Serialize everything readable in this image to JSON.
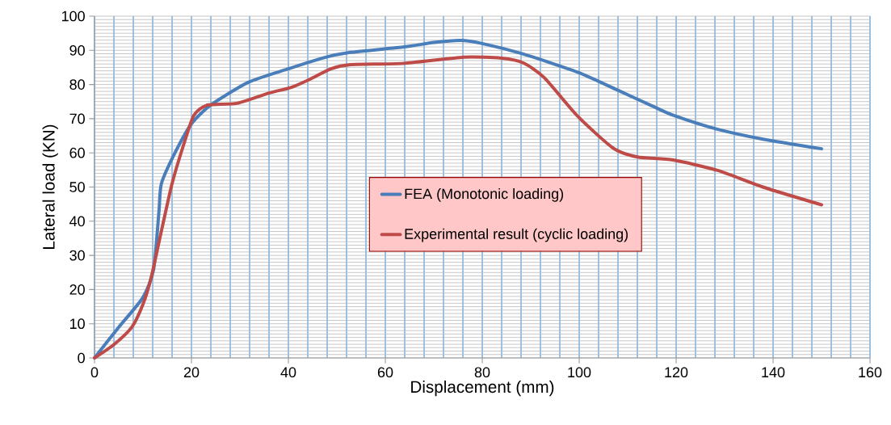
{
  "chart_data": {
    "type": "line",
    "xlabel": "Displacement (mm)",
    "ylabel": "Lateral load (KN)",
    "xlim": [
      0,
      160
    ],
    "ylim": [
      0,
      100
    ],
    "xticks": [
      0,
      20,
      40,
      60,
      80,
      100,
      120,
      140,
      160
    ],
    "yticks": [
      0,
      10,
      20,
      30,
      40,
      50,
      60,
      70,
      80,
      90,
      100
    ],
    "grid": true,
    "legend": "center",
    "line_style": "solid",
    "marker": "none",
    "series": [
      {
        "name": "FEA (Monotonic loading)",
        "color": "#4a7ebb",
        "x": [
          0,
          5,
          10,
          12.2,
          13.3,
          13.8,
          16.6,
          20,
          24,
          31.8,
          40,
          47.2,
          52.8,
          63.9,
          70,
          75.5,
          80,
          88.5,
          99.7,
          107.7,
          115.7,
          119.4,
          128,
          137.9,
          150
        ],
        "values": [
          0,
          9,
          17.7,
          26,
          43,
          51,
          60,
          68.5,
          74,
          80.7,
          84.6,
          87.8,
          89.4,
          91,
          92.3,
          92.9,
          92,
          88.9,
          83.6,
          78.5,
          73.3,
          71,
          67.1,
          64,
          61.2
        ]
      },
      {
        "name": "Experimental result (cyclic loading)",
        "color": "#be4b48",
        "x": [
          0,
          4,
          7.7,
          10,
          11.7,
          13.9,
          16,
          18.3,
          20.5,
          23.3,
          29.4,
          36,
          40.5,
          44.4,
          48.8,
          52.8,
          63.9,
          76.2,
          84,
          88.5,
          92.8,
          99.7,
          107,
          112,
          119.4,
          128.7,
          137.9,
          150
        ],
        "values": [
          0,
          3.9,
          9,
          15.7,
          23.6,
          37.8,
          51,
          62,
          71,
          74,
          74.5,
          77.5,
          79.1,
          81.5,
          84.6,
          85.8,
          86.2,
          88,
          87.7,
          86.3,
          82,
          70.7,
          61.4,
          58.8,
          57.9,
          54.8,
          50,
          44.8
        ]
      }
    ]
  }
}
